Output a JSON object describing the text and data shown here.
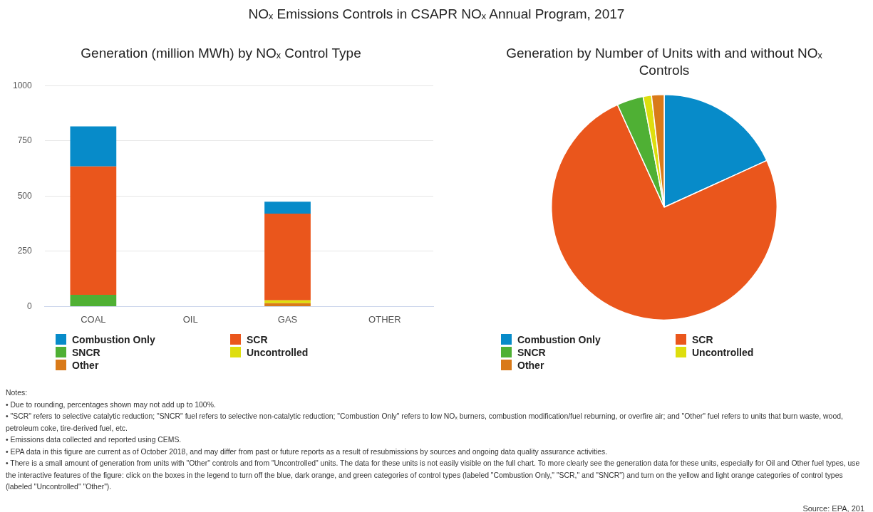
{
  "chart_data": [
    {
      "type": "other",
      "title": "NOₓ Emissions Controls in CSAPR NOₓ Annual Program, 2017"
    },
    {
      "type": "bar",
      "title": "Generation (million MWh) by NOₓ Control Type",
      "categories": [
        "COAL",
        "OIL",
        "GAS",
        "OTHER"
      ],
      "stacked": true,
      "ylim": [
        0,
        1000
      ],
      "yticks": [
        0,
        250,
        500,
        750,
        1000
      ],
      "grid": "y",
      "legend": "bottom left",
      "series": [
        {
          "name": "Other",
          "color": "#d97a19",
          "values": [
            0,
            0,
            15,
            0
          ]
        },
        {
          "name": "Uncontrolled",
          "color": "#dede0e",
          "values": [
            0,
            0,
            13,
            0
          ]
        },
        {
          "name": "SNCR",
          "color": "#4fb034",
          "values": [
            53,
            0,
            0,
            0
          ]
        },
        {
          "name": "SCR",
          "color": "#ea561c",
          "values": [
            581,
            0,
            392,
            0
          ]
        },
        {
          "name": "Combustion Only",
          "color": "#078bc9",
          "values": [
            181,
            0,
            54,
            0
          ]
        }
      ]
    },
    {
      "type": "pie",
      "title": "Generation by Number of Units with and without NOₓ Controls",
      "categories": [
        "Combustion Only",
        "SCR",
        "SNCR",
        "Uncontrolled",
        "Other"
      ],
      "values": [
        18.2,
        75.0,
        3.8,
        1.2,
        1.8
      ],
      "colors": [
        "#078bc9",
        "#ea561c",
        "#4fb034",
        "#dede0e",
        "#d97a19"
      ],
      "legend": "bottom left"
    },
    {
      "type": "other",
      "annotations": [
        "Notes:",
        "• Due to rounding, percentages shown may not add up to 100%.",
        "• \"SCR\" refers to selective catalytic reduction; \"SNCR\" fuel refers to selective non-catalytic reduction; \"Combustion Only\" refers to low NOₓ burners, combustion modification/fuel reburning, or overfire air; and \"Other\" fuel refers to units that burn waste, wood, petroleum coke, tire-derived fuel, etc.",
        "• Emissions data collected and reported using CEMS.",
        "• EPA data in this figure are current as of October 2018, and may differ from past or future reports as a result of resubmissions by sources and ongoing data quality assurance activities.",
        "• There is a small amount of generation from units with \"Other\" controls and from \"Uncontrolled\" units. The data for these units is not easily visible on the full chart. To more clearly see the generation data for these units, especially for Oil and Other fuel types, use the interactive features of the figure: click on the boxes in the legend to turn off the blue, dark orange, and green categories of control types (labeled \"Combustion Only,\" \"SCR,\" and \"SNCR\") and turn on the yellow and light orange categories of control types (labeled \"Uncontrolled\" \"Other\").",
        "Source: EPA, 201"
      ]
    }
  ]
}
